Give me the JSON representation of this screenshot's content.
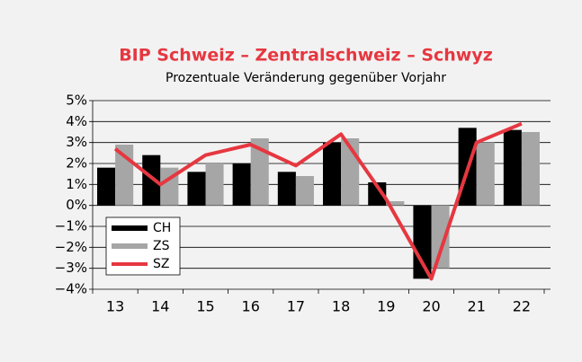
{
  "chart_data": {
    "type": "bar",
    "title": "BIP Schweiz – Zentralschweiz – Schwyz",
    "subtitle": "Prozentuale Veränderung gegenüber Vorjahr",
    "categories": [
      "13",
      "14",
      "15",
      "16",
      "17",
      "18",
      "19",
      "20",
      "21",
      "22"
    ],
    "series": [
      {
        "name": "CH",
        "type": "bar",
        "color": "#000000",
        "values": [
          1.8,
          2.4,
          1.6,
          2.0,
          1.6,
          3.0,
          1.1,
          -3.5,
          3.7,
          3.6
        ]
      },
      {
        "name": "ZS",
        "type": "bar",
        "color": "#a6a6a6",
        "values": [
          2.9,
          1.8,
          2.0,
          3.2,
          1.4,
          3.2,
          0.2,
          -3.0,
          3.0,
          3.5
        ]
      },
      {
        "name": "SZ",
        "type": "line",
        "color": "#e63740",
        "values": [
          2.7,
          1.0,
          2.4,
          2.9,
          1.9,
          3.4,
          0.3,
          -3.5,
          3.0,
          3.9
        ]
      }
    ],
    "ylim": [
      -4,
      5
    ],
    "yticks": [
      {
        "value": -4,
        "label": "−4%"
      },
      {
        "value": -3,
        "label": "−3%"
      },
      {
        "value": -2,
        "label": "−2%"
      },
      {
        "value": -1,
        "label": "−1%"
      },
      {
        "value": 0,
        "label": "0%"
      },
      {
        "value": 1,
        "label": "1%"
      },
      {
        "value": 2,
        "label": "2%"
      },
      {
        "value": 3,
        "label": "3%"
      },
      {
        "value": 4,
        "label": "4%"
      },
      {
        "value": 5,
        "label": "5%"
      }
    ],
    "grid": true,
    "legend": "lower-left"
  }
}
